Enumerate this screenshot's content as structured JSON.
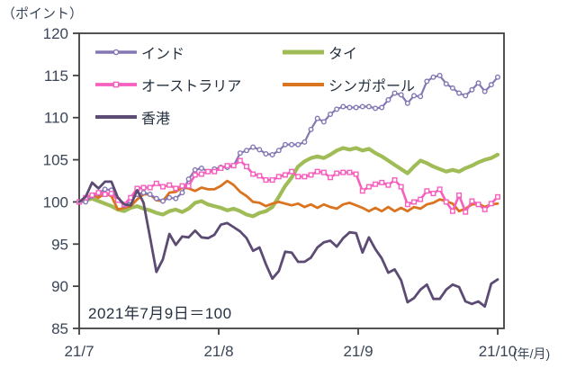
{
  "unit_label": "（ポイント）",
  "annotation": "2021年7月9日＝100",
  "x_axis": {
    "tick_labels": [
      "21/7",
      "21/8",
      "21/9",
      "21/10"
    ],
    "suffix": "(年/月)"
  },
  "y_axis": {
    "min": 85,
    "max": 120,
    "step": 5,
    "tick_labels": [
      "85",
      "90",
      "95",
      "100",
      "105",
      "110",
      "115",
      "120"
    ]
  },
  "colors": {
    "axis_text": "#3A4557",
    "axis_line": "#404040",
    "background": "#FFFFFF"
  },
  "chart_data": {
    "type": "line",
    "title": "",
    "xlabel": "(年/月)",
    "ylabel": "（ポイント）",
    "ylim": [
      85,
      120
    ],
    "grid": false,
    "legend_position": "inside-top-left",
    "note": "2021年7月9日＝100",
    "x_tick_labels": [
      "21/7",
      "21/8",
      "21/9",
      "21/10"
    ],
    "series": [
      {
        "name": "インド",
        "key": "india",
        "color": "#8477B4",
        "marker": "circle",
        "line_width": 2.2,
        "values": [
          100.0,
          100.0,
          100.7,
          101.0,
          101.5,
          101.4,
          100.3,
          99.6,
          100.1,
          100.9,
          101.1,
          100.9,
          100.4,
          100.1,
          100.5,
          100.4,
          101.1,
          102.7,
          103.8,
          104.0,
          103.6,
          103.9,
          104.1,
          104.1,
          104.3,
          105.8,
          106.1,
          106.5,
          106.2,
          105.7,
          105.6,
          106.1,
          106.8,
          106.8,
          106.8,
          107.1,
          108.6,
          109.9,
          109.5,
          110.4,
          111.0,
          111.3,
          111.2,
          111.2,
          111.3,
          111.3,
          111.1,
          111.2,
          112.1,
          112.9,
          112.7,
          111.7,
          112.6,
          112.5,
          114.3,
          114.8,
          115.0,
          114.0,
          113.5,
          112.9,
          112.6,
          113.3,
          114.1,
          113.1,
          113.9,
          114.8
        ]
      },
      {
        "name": "タイ",
        "key": "thailand",
        "color": "#A0BC56",
        "marker": "none",
        "line_width": 4.2,
        "values": [
          100.0,
          100.2,
          100.4,
          100.1,
          99.8,
          99.5,
          99.1,
          98.9,
          99.3,
          99.5,
          99.2,
          99.0,
          98.7,
          98.5,
          98.9,
          99.1,
          98.8,
          99.2,
          99.9,
          100.1,
          99.7,
          99.5,
          99.3,
          99.0,
          99.2,
          98.9,
          98.5,
          98.3,
          98.7,
          98.9,
          99.4,
          100.6,
          101.9,
          102.9,
          104.2,
          104.8,
          105.2,
          105.4,
          105.2,
          105.6,
          106.1,
          106.4,
          106.2,
          106.4,
          106.1,
          106.3,
          105.8,
          105.4,
          104.9,
          104.4,
          103.9,
          103.4,
          104.2,
          104.9,
          104.6,
          104.2,
          103.9,
          103.6,
          103.8,
          103.6,
          104.0,
          104.3,
          104.7,
          105.0,
          105.2,
          105.6
        ]
      },
      {
        "name": "オーストラリア",
        "key": "australia",
        "color": "#F75FBE",
        "marker": "square",
        "line_width": 2.6,
        "values": [
          100.0,
          100.5,
          100.8,
          101.1,
          100.9,
          101.0,
          100.2,
          99.7,
          100.5,
          101.6,
          101.7,
          101.7,
          102.2,
          101.8,
          102.0,
          101.6,
          101.9,
          101.9,
          103.2,
          103.3,
          103.6,
          103.6,
          104.0,
          104.3,
          104.3,
          104.9,
          104.2,
          103.3,
          103.1,
          102.6,
          102.6,
          103.0,
          103.2,
          103.6,
          103.0,
          103.0,
          103.2,
          103.6,
          103.5,
          102.9,
          103.4,
          103.5,
          103.5,
          103.3,
          101.3,
          101.8,
          102.1,
          102.3,
          102.0,
          102.6,
          101.8,
          99.7,
          100.0,
          100.3,
          101.3,
          101.0,
          101.5,
          100.0,
          98.9,
          100.8,
          98.8,
          100.1,
          99.7,
          99.1,
          99.8,
          100.6
        ]
      },
      {
        "name": "シンガポール",
        "key": "singapore",
        "color": "#DB7420",
        "marker": "none",
        "line_width": 2.8,
        "values": [
          100.0,
          100.6,
          100.8,
          100.5,
          101.0,
          100.7,
          99.1,
          99.3,
          99.5,
          100.3,
          100.9,
          100.9,
          100.2,
          100.1,
          101.1,
          101.2,
          101.7,
          101.6,
          101.3,
          101.7,
          101.5,
          101.5,
          101.9,
          102.5,
          102.0,
          101.2,
          100.7,
          100.0,
          99.9,
          99.5,
          99.8,
          100.0,
          99.8,
          99.6,
          99.8,
          99.4,
          99.7,
          99.3,
          99.7,
          99.4,
          99.2,
          99.7,
          99.9,
          99.6,
          99.3,
          98.9,
          99.3,
          98.9,
          99.4,
          98.9,
          99.3,
          98.9,
          99.4,
          99.2,
          99.7,
          99.9,
          100.3,
          100.1,
          99.8,
          98.9,
          99.2,
          99.7,
          99.8,
          99.4,
          99.7,
          99.8
        ]
      },
      {
        "name": "香港",
        "key": "hongkong",
        "color": "#5C4B73",
        "marker": "none",
        "line_width": 2.8,
        "values": [
          100.0,
          100.6,
          102.3,
          101.6,
          102.4,
          102.4,
          100.5,
          99.7,
          99.6,
          101.4,
          99.9,
          95.8,
          91.7,
          93.2,
          96.2,
          94.9,
          95.9,
          95.8,
          96.6,
          95.8,
          95.7,
          96.1,
          97.3,
          97.5,
          97.0,
          96.5,
          95.7,
          94.2,
          94.6,
          92.6,
          90.9,
          91.8,
          94.1,
          94.0,
          92.9,
          92.9,
          93.4,
          94.6,
          95.2,
          95.4,
          94.7,
          95.7,
          96.4,
          96.3,
          94.0,
          95.8,
          94.4,
          93.3,
          91.6,
          92.0,
          90.7,
          88.1,
          88.6,
          89.6,
          90.2,
          88.5,
          88.5,
          89.6,
          90.2,
          89.9,
          88.2,
          87.9,
          88.2,
          87.6,
          90.3,
          90.8
        ]
      }
    ]
  }
}
